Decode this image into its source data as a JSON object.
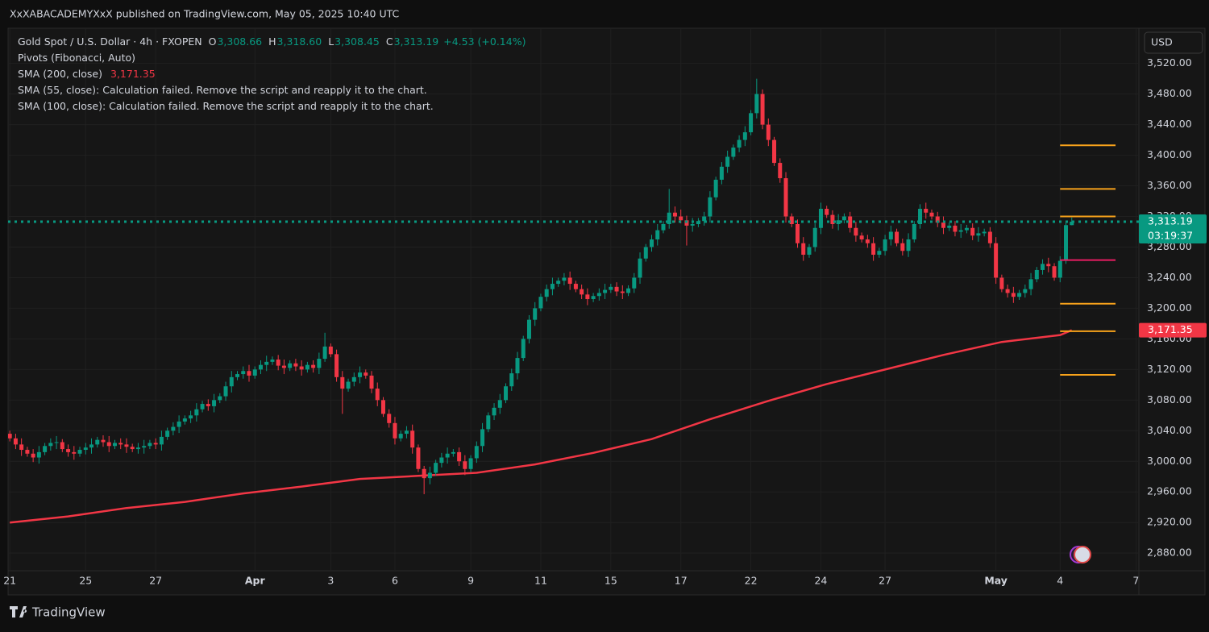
{
  "page": {
    "publisher": "XxXABACADEMYXxX published on TradingView.com, May 05, 2025 10:40 UTC",
    "brand": "TradingView",
    "currency": "USD"
  },
  "chart_data": {
    "type": "candlestick",
    "legend": {
      "symbol": "Gold Spot / U.S. Dollar · 4h · FXOPEN",
      "ohlc": [
        {
          "key": "O",
          "value": "3,308.66"
        },
        {
          "key": "H",
          "value": "3,318.60"
        },
        {
          "key": "L",
          "value": "3,308.45"
        },
        {
          "key": "C",
          "value": "3,313.19"
        }
      ],
      "change": "+4.53 (+0.14%)",
      "notes": [
        "SMA (55, close): Calculation failed. Remove the script and reapply it to the chart.",
        "SMA (100, close): Calculation failed. Remove the script and reapply it to the chart."
      ]
    },
    "up_color": "#089981",
    "down_color": "#f23645",
    "xlim": [
      -0.3,
      193.5
    ],
    "xticks": [
      {
        "value": 0,
        "label": "21"
      },
      {
        "value": 13,
        "label": "25"
      },
      {
        "value": 25,
        "label": "27"
      },
      {
        "value": 42,
        "label": "Apr"
      },
      {
        "value": 55,
        "label": "3"
      },
      {
        "value": 66,
        "label": "6"
      },
      {
        "value": 79,
        "label": "9"
      },
      {
        "value": 91,
        "label": "11"
      },
      {
        "value": 103,
        "label": "15"
      },
      {
        "value": 115,
        "label": "17"
      },
      {
        "value": 127,
        "label": "22"
      },
      {
        "value": 139,
        "label": "24"
      },
      {
        "value": 150,
        "label": "27"
      },
      {
        "value": 169,
        "label": "May"
      },
      {
        "value": 180,
        "label": "4"
      },
      {
        "value": 193,
        "label": "7"
      }
    ],
    "ylim": [
      2857,
      3566
    ],
    "yticks": [
      {
        "value": 2880,
        "label": "2,880.00"
      },
      {
        "value": 2920,
        "label": "2,920.00"
      },
      {
        "value": 2960,
        "label": "2,960.00"
      },
      {
        "value": 3000,
        "label": "3,000.00"
      },
      {
        "value": 3040,
        "label": "3,040.00"
      },
      {
        "value": 3080,
        "label": "3,080.00"
      },
      {
        "value": 3120,
        "label": "3,120.00"
      },
      {
        "value": 3160,
        "label": "3,160.00"
      },
      {
        "value": 3200,
        "label": "3,200.00"
      },
      {
        "value": 3240,
        "label": "3,240.00"
      },
      {
        "value": 3280,
        "label": "3,280.00"
      },
      {
        "value": 3320,
        "label": "3,320.00"
      },
      {
        "value": 3360,
        "label": "3,360.00"
      },
      {
        "value": 3400,
        "label": "3,400.00"
      },
      {
        "value": 3440,
        "label": "3,440.00"
      },
      {
        "value": 3480,
        "label": "3,480.00"
      },
      {
        "value": 3520,
        "label": "3,520.00"
      }
    ],
    "grid": true,
    "open": [
      3036,
      3030,
      3022,
      3015,
      3010,
      3005,
      3012,
      3020,
      3024,
      3025,
      3016,
      3012,
      3010,
      3015,
      3018,
      3022,
      3028,
      3025,
      3020,
      3024,
      3022,
      3019,
      3016,
      3018,
      3020,
      3024,
      3022,
      3032,
      3040,
      3045,
      3052,
      3056,
      3060,
      3068,
      3075,
      3072,
      3080,
      3085,
      3098,
      3110,
      3114,
      3118,
      3112,
      3120,
      3126,
      3130,
      3133,
      3125,
      3122,
      3128,
      3124,
      3120,
      3126,
      3122,
      3134,
      3150,
      3140,
      3110,
      3095,
      3104,
      3110,
      3116,
      3112,
      3095,
      3080,
      3062,
      3050,
      3030,
      3036,
      3040,
      3018,
      2990,
      2978,
      2985,
      2998,
      3005,
      3010,
      3012,
      3000,
      2990,
      3004,
      3020,
      3042,
      3060,
      3070,
      3080,
      3098,
      3115,
      3135,
      3160,
      3185,
      3200,
      3215,
      3225,
      3232,
      3236,
      3240,
      3232,
      3225,
      3218,
      3212,
      3216,
      3220,
      3224,
      3228,
      3222,
      3220,
      3226,
      3240,
      3265,
      3280,
      3290,
      3302,
      3310,
      3325,
      3320,
      3315,
      3308,
      3310,
      3314,
      3320,
      3345,
      3368,
      3385,
      3398,
      3410,
      3420,
      3430,
      3455,
      3480,
      3440,
      3420,
      3390,
      3370,
      3320,
      3310,
      3285,
      3270,
      3280,
      3305,
      3330,
      3322,
      3310,
      3315,
      3320,
      3305,
      3295,
      3290,
      3285,
      3270,
      3275,
      3290,
      3300,
      3285,
      3275,
      3290,
      3310,
      3330,
      3325,
      3320,
      3312,
      3305,
      3308,
      3300,
      3302,
      3305,
      3295,
      3298,
      3300,
      3285,
      3240,
      3225,
      3220,
      3215,
      3220,
      3225,
      3238,
      3250,
      3258,
      3255,
      3240,
      3262,
      3308.66
    ],
    "high": [
      3040,
      3036,
      3030,
      3019,
      3016,
      3020,
      3024,
      3030,
      3033,
      3029,
      3022,
      3020,
      3019,
      3024,
      3030,
      3032,
      3034,
      3033,
      3028,
      3030,
      3030,
      3023,
      3024,
      3028,
      3028,
      3030,
      3040,
      3044,
      3051,
      3060,
      3060,
      3066,
      3076,
      3079,
      3081,
      3088,
      3089,
      3104,
      3118,
      3118,
      3124,
      3126,
      3124,
      3132,
      3138,
      3137,
      3139,
      3133,
      3132,
      3134,
      3132,
      3130,
      3132,
      3142,
      3168,
      3154,
      3146,
      3118,
      3108,
      3116,
      3124,
      3120,
      3118,
      3103,
      3084,
      3068,
      3058,
      3040,
      3046,
      3048,
      3022,
      2994,
      2993,
      3002,
      3011,
      3018,
      3016,
      3018,
      3008,
      3008,
      3026,
      3050,
      3064,
      3076,
      3088,
      3102,
      3121,
      3143,
      3164,
      3191,
      3208,
      3219,
      3231,
      3240,
      3240,
      3246,
      3248,
      3236,
      3231,
      3226,
      3220,
      3226,
      3232,
      3232,
      3234,
      3230,
      3230,
      3246,
      3273,
      3284,
      3296,
      3310,
      3314,
      3356,
      3333,
      3329,
      3321,
      3318,
      3318,
      3326,
      3353,
      3372,
      3391,
      3406,
      3414,
      3426,
      3438,
      3459,
      3500,
      3486,
      3448,
      3424,
      3396,
      3378,
      3324,
      3316,
      3293,
      3284,
      3311,
      3338,
      3334,
      3328,
      3323,
      3324,
      3326,
      3313,
      3299,
      3296,
      3293,
      3279,
      3296,
      3308,
      3304,
      3291,
      3298,
      3314,
      3336,
      3338,
      3329,
      3326,
      3320,
      3312,
      3314,
      3310,
      3309,
      3311,
      3306,
      3304,
      3306,
      3293,
      3244,
      3231,
      3228,
      3224,
      3231,
      3246,
      3254,
      3264,
      3266,
      3259,
      3268,
      3312,
      3318.6
    ],
    "low": [
      3026,
      3016,
      3007,
      3006,
      2999,
      2997,
      3008,
      3014,
      3016,
      3012,
      3006,
      3002,
      3006,
      3009,
      3010,
      3018,
      3019,
      3012,
      3016,
      3016,
      3011,
      3012,
      3010,
      3010,
      3016,
      3016,
      3014,
      3028,
      3034,
      3037,
      3048,
      3050,
      3052,
      3064,
      3066,
      3064,
      3076,
      3079,
      3090,
      3106,
      3108,
      3104,
      3108,
      3114,
      3118,
      3126,
      3119,
      3114,
      3118,
      3118,
      3112,
      3116,
      3116,
      3114,
      3130,
      3136,
      3104,
      3062,
      3091,
      3098,
      3102,
      3108,
      3089,
      3072,
      3058,
      3044,
      3022,
      3026,
      3030,
      3010,
      2986,
      2957,
      2970,
      2981,
      2992,
      2997,
      3006,
      2994,
      2982,
      2986,
      2998,
      3012,
      3038,
      3054,
      3062,
      3076,
      3092,
      3107,
      3131,
      3154,
      3177,
      3196,
      3209,
      3217,
      3228,
      3230,
      3224,
      3221,
      3212,
      3204,
      3208,
      3210,
      3212,
      3220,
      3216,
      3212,
      3216,
      3220,
      3232,
      3261,
      3274,
      3282,
      3298,
      3304,
      3312,
      3311,
      3282,
      3300,
      3306,
      3308,
      3312,
      3341,
      3362,
      3377,
      3394,
      3404,
      3412,
      3426,
      3448,
      3434,
      3412,
      3386,
      3364,
      3312,
      3306,
      3279,
      3262,
      3266,
      3274,
      3297,
      3318,
      3304,
      3302,
      3311,
      3299,
      3287,
      3286,
      3279,
      3262,
      3266,
      3269,
      3282,
      3281,
      3269,
      3267,
      3286,
      3304,
      3317,
      3316,
      3306,
      3297,
      3301,
      3294,
      3292,
      3298,
      3289,
      3287,
      3294,
      3279,
      3232,
      3221,
      3214,
      3207,
      3211,
      3214,
      3217,
      3234,
      3244,
      3247,
      3236,
      3234,
      3258,
      3308.45
    ],
    "close": [
      3030,
      3022,
      3015,
      3010,
      3005,
      3012,
      3020,
      3024,
      3025,
      3016,
      3012,
      3010,
      3015,
      3018,
      3022,
      3028,
      3025,
      3020,
      3024,
      3022,
      3019,
      3016,
      3018,
      3020,
      3024,
      3022,
      3032,
      3040,
      3045,
      3052,
      3056,
      3060,
      3068,
      3075,
      3072,
      3080,
      3085,
      3098,
      3110,
      3114,
      3118,
      3112,
      3120,
      3126,
      3130,
      3133,
      3125,
      3122,
      3128,
      3124,
      3120,
      3126,
      3122,
      3134,
      3150,
      3140,
      3110,
      3095,
      3104,
      3110,
      3116,
      3112,
      3095,
      3080,
      3062,
      3050,
      3030,
      3036,
      3040,
      3018,
      2990,
      2978,
      2985,
      2998,
      3005,
      3010,
      3012,
      3000,
      2990,
      3004,
      3020,
      3042,
      3060,
      3070,
      3080,
      3098,
      3115,
      3135,
      3160,
      3185,
      3200,
      3215,
      3225,
      3232,
      3236,
      3240,
      3232,
      3225,
      3218,
      3212,
      3216,
      3220,
      3224,
      3228,
      3222,
      3220,
      3226,
      3240,
      3265,
      3280,
      3290,
      3302,
      3310,
      3325,
      3320,
      3315,
      3308,
      3310,
      3314,
      3320,
      3345,
      3368,
      3385,
      3398,
      3410,
      3420,
      3430,
      3455,
      3480,
      3440,
      3420,
      3390,
      3370,
      3320,
      3310,
      3285,
      3270,
      3280,
      3305,
      3330,
      3322,
      3310,
      3315,
      3320,
      3305,
      3295,
      3290,
      3285,
      3270,
      3275,
      3290,
      3300,
      3285,
      3275,
      3290,
      3310,
      3330,
      3325,
      3320,
      3312,
      3305,
      3308,
      3300,
      3302,
      3305,
      3295,
      3298,
      3300,
      3285,
      3240,
      3225,
      3220,
      3215,
      3220,
      3225,
      3238,
      3250,
      3258,
      3255,
      3240,
      3262,
      3308.66,
      3313.19
    ],
    "last_price_label": "3,313.19",
    "countdown": "03:19:37",
    "sma": {
      "name": "SMA (200, close)",
      "color": "#f23645",
      "value_label": "3,171.35",
      "x": [
        0,
        10,
        20,
        30,
        40,
        50,
        60,
        70,
        80,
        90,
        100,
        110,
        120,
        130,
        140,
        150,
        160,
        170,
        180,
        182
      ],
      "values": [
        2920,
        2928,
        2939,
        2947,
        2958,
        2967,
        2977,
        2981,
        2985,
        2996,
        3011,
        3029,
        3055,
        3079,
        3101,
        3120,
        3139,
        3156,
        3165,
        3171.35
      ]
    },
    "pivots": {
      "name": "Pivots (Fibonacci, Auto)",
      "levels": [
        3113,
        3170,
        3206,
        3263,
        3320,
        3356,
        3413
      ],
      "colors": [
        "#f7a21b",
        "#f7a21b",
        "#f7a21b",
        "#e91e63",
        "#f7a21b",
        "#f7a21b",
        "#f7a21b"
      ]
    }
  }
}
